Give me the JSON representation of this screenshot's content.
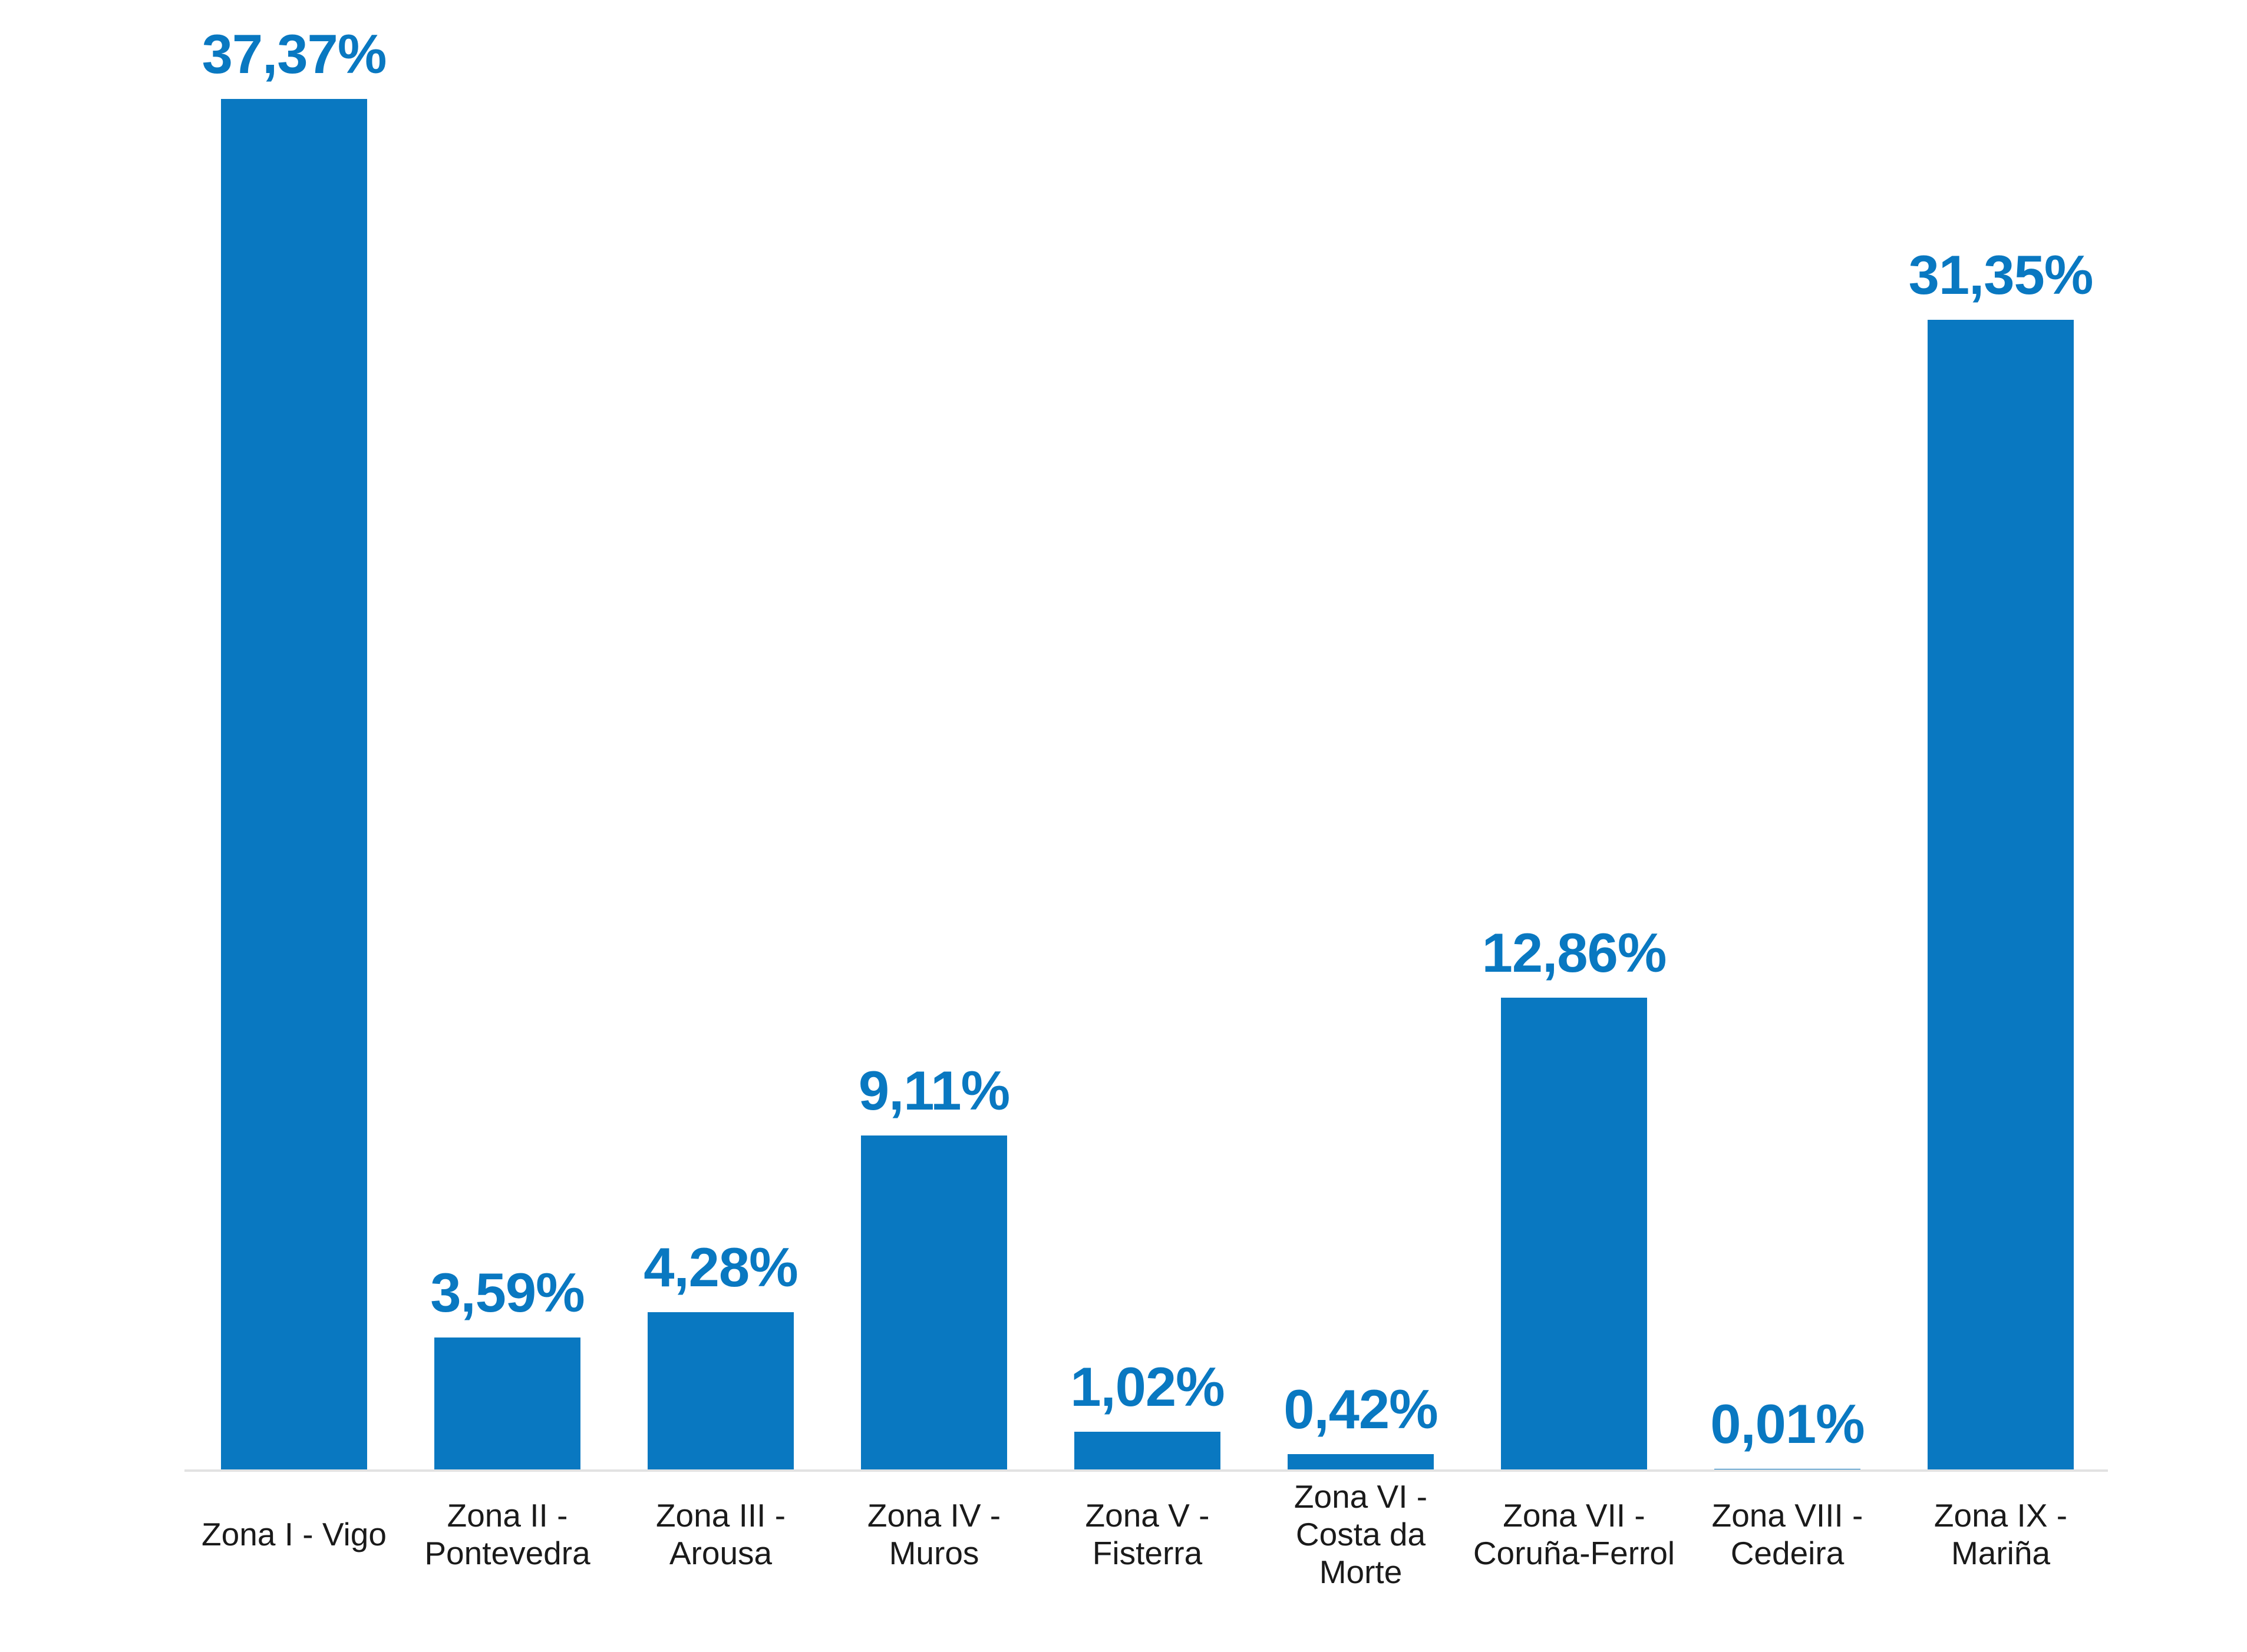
{
  "chart_data": {
    "type": "bar",
    "title": "",
    "xlabel": "",
    "ylabel": "",
    "categories": [
      "Zona I - Vigo",
      "Zona II - Pontevedra",
      "Zona III - Arousa",
      "Zona IV - Muros",
      "Zona V - Fisterra",
      "Zona VI - Costa da Morte",
      "Zona VII - Coruña-Ferrol",
      "Zona VIII - Cedeira",
      "Zona IX - Mariña"
    ],
    "values": [
      37.37,
      3.59,
      4.28,
      9.11,
      1.02,
      0.42,
      12.86,
      0.01,
      31.35
    ],
    "value_labels": [
      "37,37%",
      "3,59%",
      "4,28%",
      "9,11%",
      "1,02%",
      "0,42%",
      "12,86%",
      "0,01%",
      "31,35%"
    ],
    "ylim": [
      0,
      40
    ],
    "grid": false,
    "legend": false,
    "data_labels_position": "above-bars",
    "bar_color": "#0978C1",
    "value_label_color": "#0978C1",
    "category_label_color": "#1A1A1A",
    "axis_line_color": "#E2E2E2",
    "background_color": "#FFFFFF"
  }
}
